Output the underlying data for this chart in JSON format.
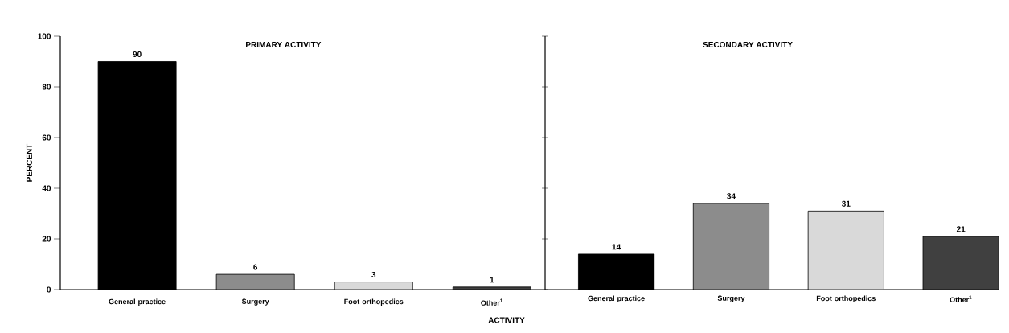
{
  "chart_data": [
    {
      "type": "bar",
      "title": "PRIMARY ACTIVITY",
      "xlabel": "ACTIVITY",
      "ylabel": "PERCENT",
      "categories": [
        "General practice",
        "Surgery",
        "Foot orthopedics",
        "Other$^{1}$"
      ],
      "values": [
        90,
        6,
        3,
        1
      ],
      "colors": [
        "#000000",
        "#8c8c8c",
        "#d9d9d9",
        "#404040"
      ],
      "data_labels": true,
      "ylim": [
        0,
        100
      ],
      "yticks": [
        0,
        20,
        40,
        60,
        80,
        100
      ]
    },
    {
      "type": "bar",
      "title": "SECONDARY ACTIVITY",
      "categories": [
        "General practice",
        "Surgery",
        "Foot orthopedics",
        "Other$^{1}$"
      ],
      "values": [
        14,
        34,
        31,
        21
      ],
      "colors": [
        "#000000",
        "#8c8c8c",
        "#d9d9d9",
        "#404040"
      ],
      "data_labels": true,
      "ylim": [
        0,
        100
      ],
      "yticks": [
        0,
        20,
        40,
        60,
        80,
        100
      ],
      "tick_labels": "x"
    }
  ]
}
